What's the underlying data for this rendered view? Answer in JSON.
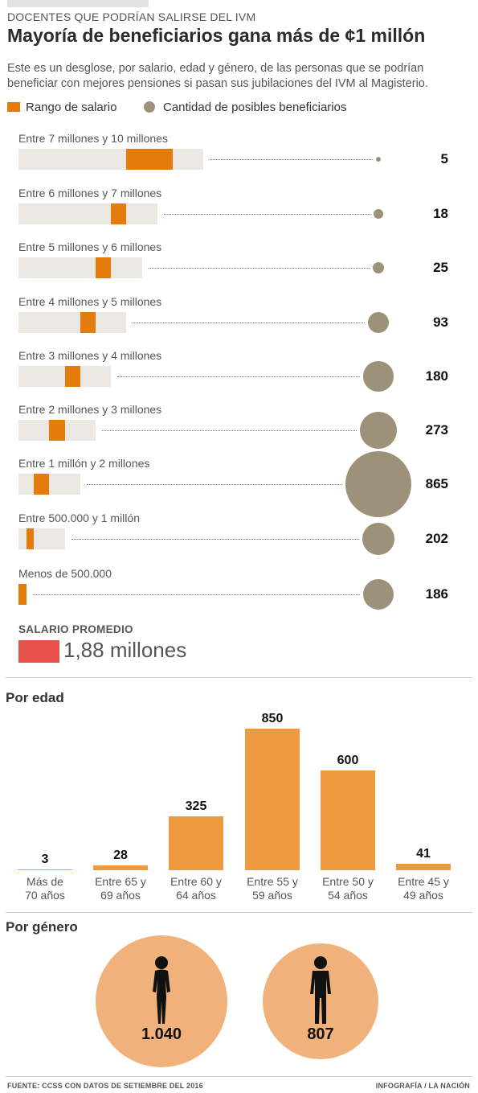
{
  "kicker": "DOCENTES QUE PODRÍAN SALIRSE DEL IVM",
  "title": "Mayoría de beneficiarios gana más de ¢1 millón",
  "intro": "Este es un desglose, por salario, edad y género, de las personas que se podrían beneficiar con mejores pensiones si pasan sus jubilaciones del IVM al Magisterio.",
  "legend": {
    "salary_range": "Rango de salario",
    "beneficiaries": "Cantidad de posibles beneficiarios"
  },
  "colors": {
    "salary_bar": "#e57b0a",
    "bar_background": "#ebe8e3",
    "bubble": "#9e917a",
    "average": "#e8504a",
    "age_bar": "#ee9a3f",
    "gender_circle": "#f0b27a",
    "person_icon": "#111111"
  },
  "average": {
    "label": "SALARIO PROMEDIO",
    "value": "1,88 millones"
  },
  "age_section_title": "Por edad",
  "gender_section_title": "Por género",
  "footer": {
    "source": "FUENTE: CCSS CON DATOS DE SETIEMBRE DEL 2016",
    "credit": "INFOGRAFÍA / LA NACIÓN"
  },
  "chart_data": [
    {
      "type": "bar",
      "categories": [
        "Entre 7 millones y 10 millones",
        "Entre 6 millones y 7 millones",
        "Entre 5 millones y 6 millones",
        "Entre 4 millones y 5 millones",
        "Entre 3 millones y 4 millones",
        "Entre 2 millones y 3 millones",
        "Entre 1 millón y 2 millones",
        "Entre 500.000 y 1 millón",
        "Menos de  500.000"
      ],
      "salary_range": [
        [
          7,
          10
        ],
        [
          6,
          7
        ],
        [
          5,
          6
        ],
        [
          4,
          5
        ],
        [
          3,
          4
        ],
        [
          2,
          3
        ],
        [
          1,
          2
        ],
        [
          0.5,
          1
        ],
        [
          0,
          0.5
        ]
      ],
      "values": [
        5,
        18,
        25,
        93,
        180,
        273,
        865,
        202,
        186
      ],
      "value_labels": [
        "5",
        "18",
        "25",
        "93",
        "180",
        "273",
        "865",
        "202",
        "186"
      ]
    },
    {
      "type": "bar",
      "title": "Por edad",
      "categories": [
        "Más de\n70 años",
        "Entre 65 y\n69 años",
        "Entre 60 y\n64 años",
        "Entre 55 y\n59 años",
        "Entre 50 y\n54 años",
        "Entre 45 y\n49 años"
      ],
      "values": [
        3,
        28,
        325,
        850,
        600,
        41
      ],
      "value_labels": [
        "3",
        "28",
        "325",
        "850",
        "600",
        "41"
      ]
    },
    {
      "type": "bar",
      "title": "Por género",
      "categories": [
        "female-icon",
        "male-icon"
      ],
      "values": [
        1040,
        807
      ],
      "value_labels": [
        "1.040",
        "807"
      ]
    }
  ]
}
